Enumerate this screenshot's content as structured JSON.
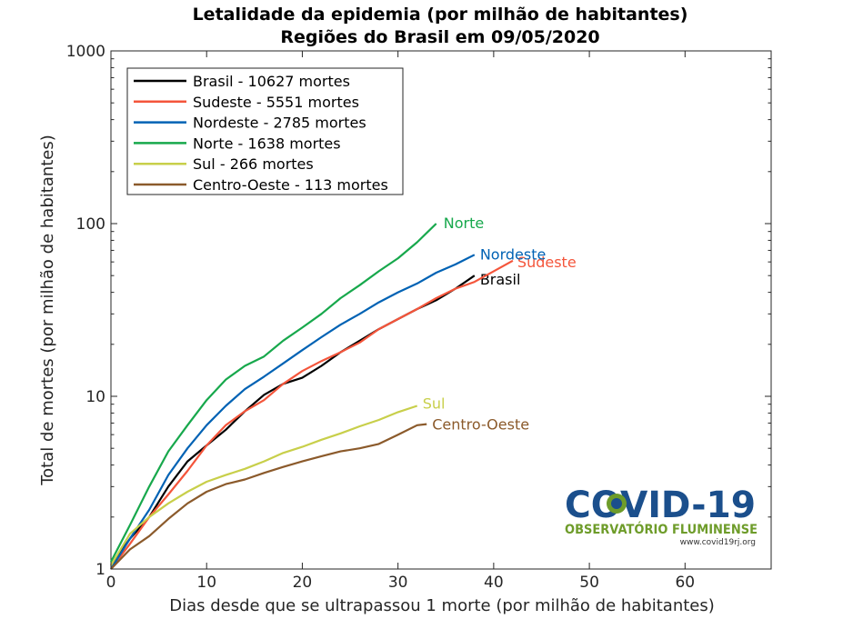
{
  "chart_data": {
    "type": "line",
    "title": "Letalidade da epidemia (por milhão de habitantes)",
    "subtitle": "Regiões do Brasil em 09/05/2020",
    "xlabel": "Dias desde que se ultrapassou 1 morte (por milhão de habitantes)",
    "ylabel": "Total de mortes (por milhão de habitantes)",
    "xlim": [
      0,
      69
    ],
    "ylim": [
      1,
      1000
    ],
    "yscale": "log",
    "xticks": [
      "0",
      "10",
      "20",
      "30",
      "40",
      "50",
      "60"
    ],
    "yticks": [
      "1",
      "10",
      "100",
      "1000"
    ],
    "grid": false,
    "legend_position": "top-left",
    "series": [
      {
        "name": "Brasil - 10627 mortes",
        "end_label": "Brasil",
        "color": "#000000",
        "x": [
          0,
          2,
          4,
          6,
          8,
          10,
          12,
          14,
          16,
          18,
          20,
          22,
          24,
          26,
          28,
          30,
          32,
          34,
          36,
          38
        ],
        "y": [
          1.05,
          1.5,
          2.0,
          3.0,
          4.2,
          5.2,
          6.4,
          8.2,
          10.2,
          11.8,
          12.8,
          15.0,
          18.0,
          21.0,
          24.5,
          28.0,
          32.0,
          36.0,
          42.0,
          50.0
        ]
      },
      {
        "name": "Sudeste - 5551 mortes",
        "end_label": "Sudeste",
        "color": "#f4553b",
        "x": [
          0,
          2,
          4,
          6,
          8,
          10,
          12,
          14,
          16,
          18,
          20,
          22,
          24,
          26,
          28,
          30,
          32,
          34,
          36,
          38,
          40,
          42
        ],
        "y": [
          1.0,
          1.4,
          2.0,
          2.7,
          3.7,
          5.2,
          6.8,
          8.2,
          9.5,
          11.8,
          14.0,
          16.0,
          18.0,
          20.5,
          24.5,
          28.0,
          32.0,
          37.0,
          42.0,
          46.0,
          53.0,
          61.0
        ]
      },
      {
        "name": "Nordeste - 2785 mortes",
        "end_label": "Nordeste",
        "color": "#0062b4",
        "x": [
          0,
          2,
          4,
          6,
          8,
          10,
          12,
          14,
          16,
          18,
          20,
          22,
          24,
          26,
          28,
          30,
          32,
          34,
          36,
          38
        ],
        "y": [
          1.0,
          1.5,
          2.2,
          3.5,
          5.0,
          6.8,
          8.8,
          11.0,
          13.0,
          15.5,
          18.5,
          22.0,
          26.0,
          30.0,
          35.0,
          40.0,
          45.0,
          52.0,
          58.0,
          66.0
        ]
      },
      {
        "name": "Norte - 1638 mortes",
        "end_label": "Norte",
        "color": "#17a84c",
        "x": [
          0,
          2,
          4,
          6,
          8,
          10,
          12,
          14,
          16,
          18,
          20,
          22,
          24,
          26,
          28,
          30,
          32,
          34
        ],
        "y": [
          1.1,
          1.8,
          3.0,
          4.8,
          6.8,
          9.5,
          12.5,
          15.0,
          17.0,
          21.0,
          25.0,
          30.0,
          37.0,
          44.0,
          53.0,
          63.0,
          78.0,
          100.0
        ]
      },
      {
        "name": "Sul - 266 mortes",
        "end_label": "Sul",
        "color": "#c8cf4a",
        "x": [
          0,
          2,
          4,
          6,
          8,
          10,
          12,
          14,
          16,
          18,
          20,
          22,
          24,
          26,
          28,
          30,
          32
        ],
        "y": [
          1.05,
          1.6,
          2.0,
          2.4,
          2.8,
          3.2,
          3.5,
          3.8,
          4.2,
          4.7,
          5.1,
          5.6,
          6.1,
          6.7,
          7.3,
          8.1,
          8.8
        ]
      },
      {
        "name": "Centro-Oeste - 113 mortes",
        "end_label": "Centro-Oeste",
        "color": "#8b5a2b",
        "x": [
          0,
          2,
          4,
          6,
          8,
          10,
          12,
          14,
          16,
          18,
          20,
          22,
          24,
          26,
          28,
          30,
          32,
          33
        ],
        "y": [
          1.0,
          1.3,
          1.55,
          1.95,
          2.4,
          2.8,
          3.1,
          3.3,
          3.6,
          3.9,
          4.2,
          4.5,
          4.8,
          5.0,
          5.3,
          6.0,
          6.8,
          6.9
        ]
      }
    ]
  },
  "logo": {
    "name": "COVID-19",
    "subtitle": "OBSERVATÓRIO FLUMINENSE",
    "url": "www.covid19rj.org",
    "color_main": "#1b4f8c",
    "color_sub": "#6e9c2a"
  }
}
